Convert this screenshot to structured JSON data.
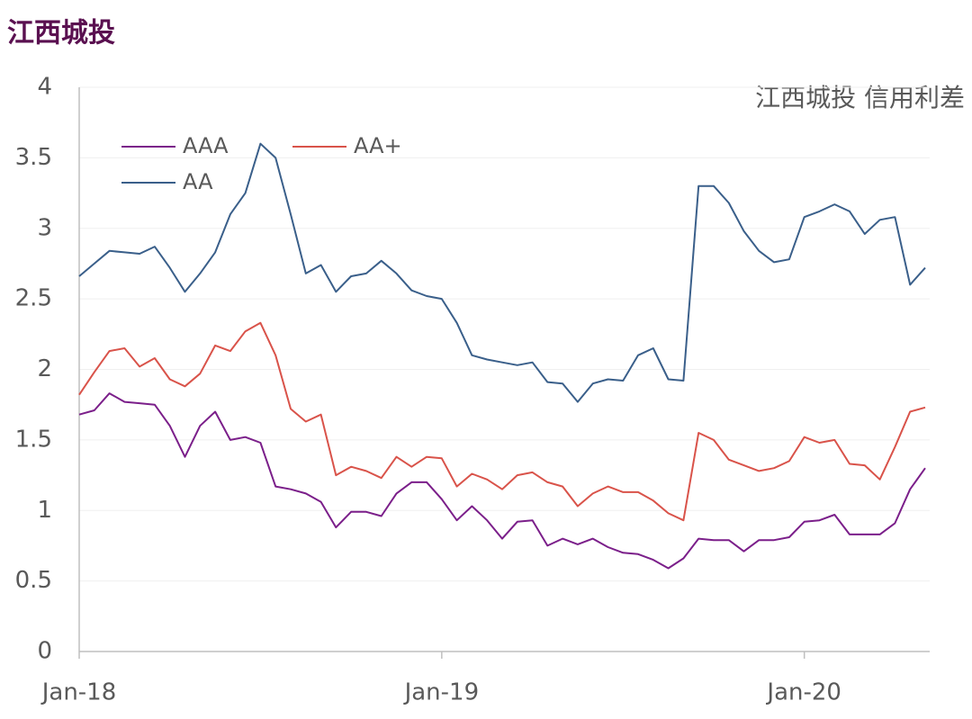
{
  "chart_data": {
    "type": "line",
    "title": "江西城投",
    "annotation": "江西城投 信用利差",
    "x": [
      0,
      0.5,
      1,
      1.5,
      2,
      2.5,
      3,
      3.5,
      4,
      4.5,
      5,
      5.5,
      6,
      6.5,
      7,
      7.5,
      8,
      8.5,
      9,
      9.5,
      10,
      10.5,
      11,
      11.5,
      12,
      12.5,
      13,
      13.5,
      14,
      14.5,
      15,
      15.5,
      16,
      16.5,
      17,
      17.5,
      18,
      18.5,
      19,
      19.5,
      20,
      20.5,
      21,
      21.5,
      22,
      22.5,
      23,
      23.5,
      24,
      24.5,
      25,
      25.5,
      26,
      26.5,
      27,
      27.5,
      28
    ],
    "series": [
      {
        "name": "AAA",
        "color": "#7b1f8a",
        "values": [
          1.68,
          1.71,
          1.83,
          1.77,
          1.76,
          1.75,
          1.6,
          1.38,
          1.6,
          1.7,
          1.5,
          1.52,
          1.48,
          1.17,
          1.15,
          1.12,
          1.06,
          0.88,
          0.99,
          0.99,
          0.96,
          1.12,
          1.2,
          1.2,
          1.08,
          0.93,
          1.03,
          0.93,
          0.8,
          0.92,
          0.93,
          0.75,
          0.8,
          0.76,
          0.8,
          0.74,
          0.7,
          0.69,
          0.65,
          0.59,
          0.66,
          0.8,
          0.79,
          0.79,
          0.71,
          0.79,
          0.79,
          0.81,
          0.92,
          0.93,
          0.97,
          0.83,
          0.83,
          0.83,
          0.91,
          1.15,
          1.3
        ]
      },
      {
        "name": "AA+",
        "color": "#d9534a",
        "values": [
          1.82,
          1.98,
          2.13,
          2.15,
          2.02,
          2.08,
          1.93,
          1.88,
          1.97,
          2.17,
          2.13,
          2.27,
          2.33,
          2.1,
          1.72,
          1.63,
          1.68,
          1.25,
          1.31,
          1.28,
          1.23,
          1.38,
          1.31,
          1.38,
          1.37,
          1.17,
          1.26,
          1.22,
          1.15,
          1.25,
          1.27,
          1.2,
          1.17,
          1.03,
          1.12,
          1.17,
          1.13,
          1.13,
          1.07,
          0.98,
          0.93,
          1.55,
          1.5,
          1.36,
          1.32,
          1.28,
          1.3,
          1.35,
          1.52,
          1.48,
          1.5,
          1.33,
          1.32,
          1.22,
          1.45,
          1.7,
          1.73
        ]
      },
      {
        "name": "AA",
        "color": "#3a5f8a",
        "values": [
          2.66,
          2.75,
          2.84,
          2.83,
          2.82,
          2.87,
          2.72,
          2.55,
          2.68,
          2.83,
          3.1,
          3.25,
          3.6,
          3.5,
          3.1,
          2.68,
          2.74,
          2.55,
          2.66,
          2.68,
          2.77,
          2.68,
          2.56,
          2.52,
          2.5,
          2.33,
          2.1,
          2.07,
          2.05,
          2.03,
          2.05,
          1.91,
          1.9,
          1.77,
          1.9,
          1.93,
          1.92,
          2.1,
          2.15,
          1.93,
          1.92,
          3.3,
          3.3,
          3.18,
          2.98,
          2.84,
          2.76,
          2.78,
          3.08,
          3.12,
          3.17,
          3.12,
          2.96,
          3.06,
          3.08,
          2.6,
          2.72
        ]
      }
    ],
    "xlim": [
      0,
      28.15
    ],
    "xticks": [
      {
        "value": 0,
        "label": "Jan-18"
      },
      {
        "value": 12,
        "label": "Jan-19"
      },
      {
        "value": 24,
        "label": "Jan-20"
      }
    ],
    "ylim": [
      0,
      4
    ],
    "yticks": [
      0,
      0.5,
      1,
      1.5,
      2,
      2.5,
      3,
      3.5,
      4
    ],
    "grid": true
  }
}
